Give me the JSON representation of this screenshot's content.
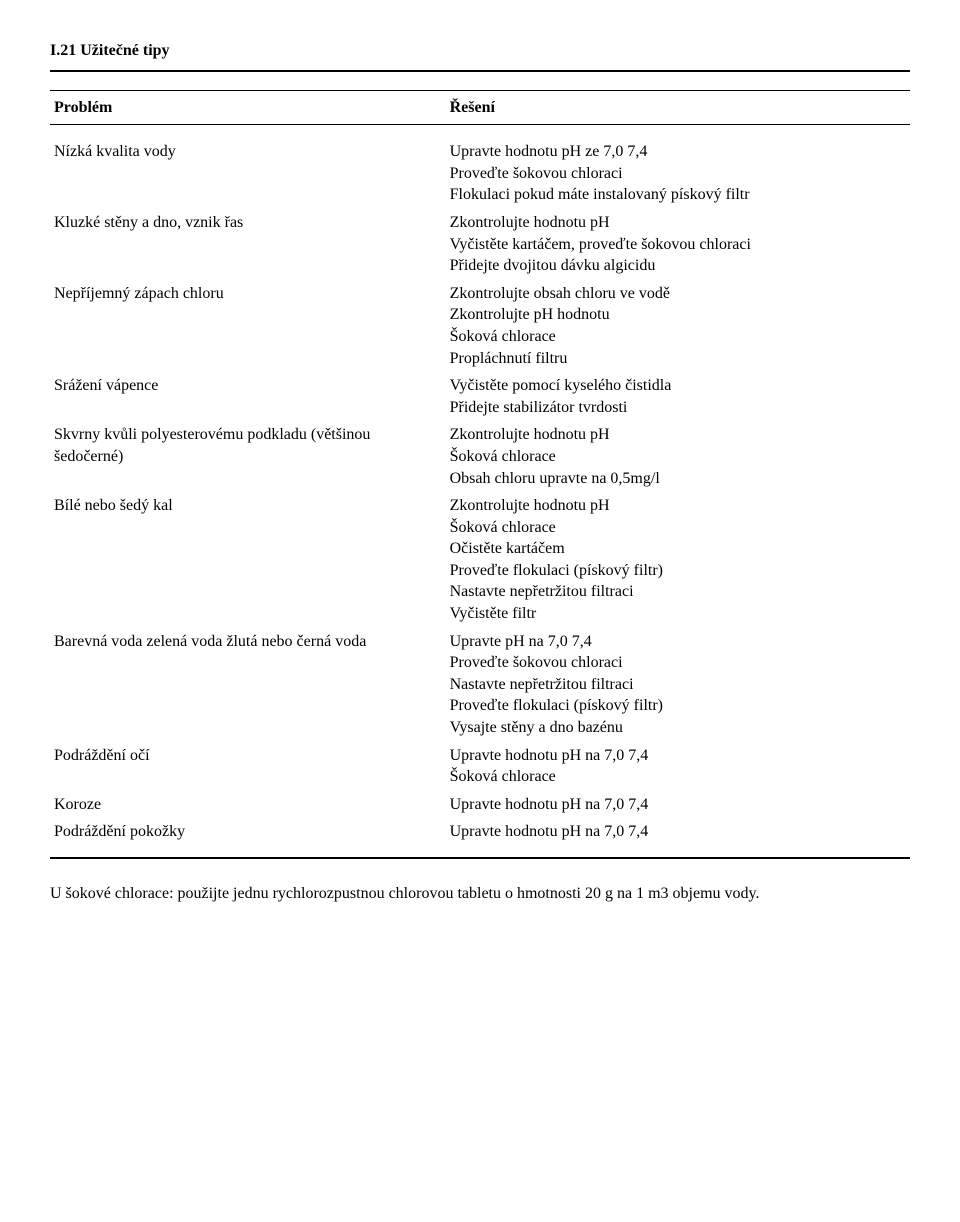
{
  "section_title": "I.21 Užitečné tipy",
  "table": {
    "headers": {
      "problem": "Problém",
      "solution": "Řešení"
    },
    "rows": [
      {
        "problem": "Nízká kvalita vody",
        "solutions": [
          "Upravte hodnotu pH ze 7,0 7,4",
          "Proveďte šokovou chloraci",
          "Flokulaci pokud máte instalovaný pískový filtr"
        ]
      },
      {
        "problem": "Kluzké stěny a dno, vznik řas",
        "solutions": [
          "Zkontrolujte hodnotu pH",
          "Vyčistěte kartáčem, proveďte šokovou chloraci",
          "Přidejte dvojitou dávku algicidu"
        ]
      },
      {
        "problem": "Nepříjemný zápach chloru",
        "solutions": [
          "Zkontrolujte obsah chloru ve vodě",
          "Zkontrolujte pH hodnotu",
          "Šoková chlorace",
          "Propláchnutí filtru"
        ]
      },
      {
        "problem": "Srážení vápence",
        "solutions": [
          "Vyčistěte pomocí kyselého čistidla",
          "Přidejte stabilizátor tvrdosti"
        ]
      },
      {
        "problem": "Skvrny kvůli polyesterovému podkladu (většinou šedočerné)",
        "solutions": [
          "Zkontrolujte hodnotu pH",
          "Šoková chlorace",
          "Obsah chloru upravte na 0,5mg/l"
        ]
      },
      {
        "problem": "Bílé nebo šedý kal",
        "solutions": [
          "Zkontrolujte hodnotu pH",
          "Šoková chlorace",
          "Očistěte kartáčem",
          "Proveďte flokulaci (pískový filtr)",
          "Nastavte nepřetržitou filtraci",
          "Vyčistěte filtr"
        ]
      },
      {
        "problem": "Barevná voda zelená voda žlutá nebo černá voda",
        "solutions": [
          "Upravte pH na 7,0 7,4",
          "Proveďte šokovou chloraci",
          "Nastavte nepřetržitou filtraci",
          "Proveďte flokulaci (pískový filtr)",
          "Vysajte stěny a dno bazénu"
        ]
      },
      {
        "problem": "Podráždění očí",
        "solutions": [
          "Upravte hodnotu pH na 7,0 7,4",
          "Šoková chlorace"
        ]
      },
      {
        "problem": "Koroze",
        "solutions": [
          "Upravte hodnotu pH na 7,0 7,4"
        ]
      },
      {
        "problem": "Podráždění pokožky",
        "solutions": [
          "Upravte hodnotu pH na 7,0 7,4"
        ]
      }
    ]
  },
  "footnote": "U šokové chlorace: použijte jednu rychlorozpustnou chlorovou tabletu o hmotnosti 20 g na 1 m3 objemu vody."
}
